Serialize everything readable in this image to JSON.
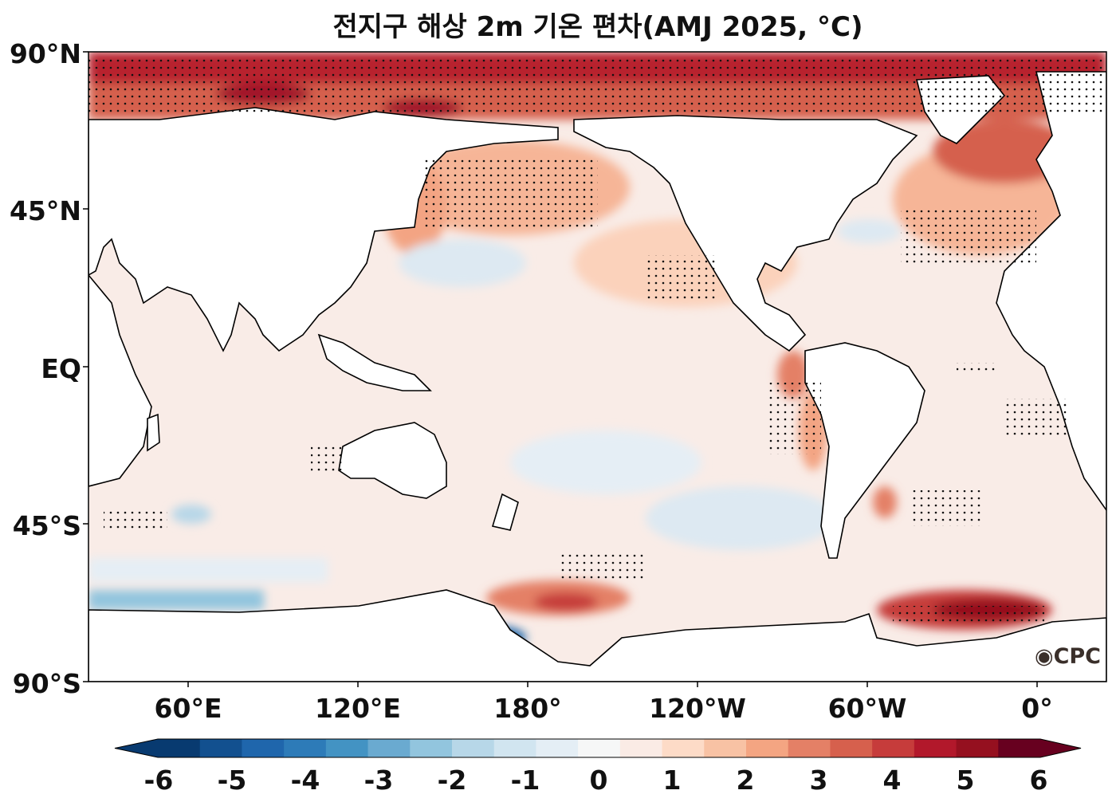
{
  "title": "전지구 해상 2m 기온 편차(AMJ 2025, °C)",
  "lat_ticks": [
    "90°N",
    "45°N",
    "EQ",
    "45°S",
    "90°S"
  ],
  "lon_ticks": [
    "60°E",
    "120°E",
    "180°",
    "120°W",
    "60°W",
    "0°"
  ],
  "colorbar": {
    "ticks": [
      "-6",
      "-5",
      "-4",
      "-3",
      "-2",
      "-1",
      "0",
      "1",
      "2",
      "3",
      "4",
      "5",
      "6"
    ],
    "colors": [
      "#083a70",
      "#12508f",
      "#1f66ac",
      "#2d7bb8",
      "#4393c3",
      "#6aaad0",
      "#92c5de",
      "#b7d7e8",
      "#d1e5f0",
      "#e4eef5",
      "#f6f7f7",
      "#faebe5",
      "#fddbc7",
      "#f8c2a4",
      "#f4a582",
      "#e48066",
      "#d6604d",
      "#c63c3b",
      "#b2182b",
      "#95101f",
      "#67001f"
    ]
  },
  "logo": "CPC"
}
